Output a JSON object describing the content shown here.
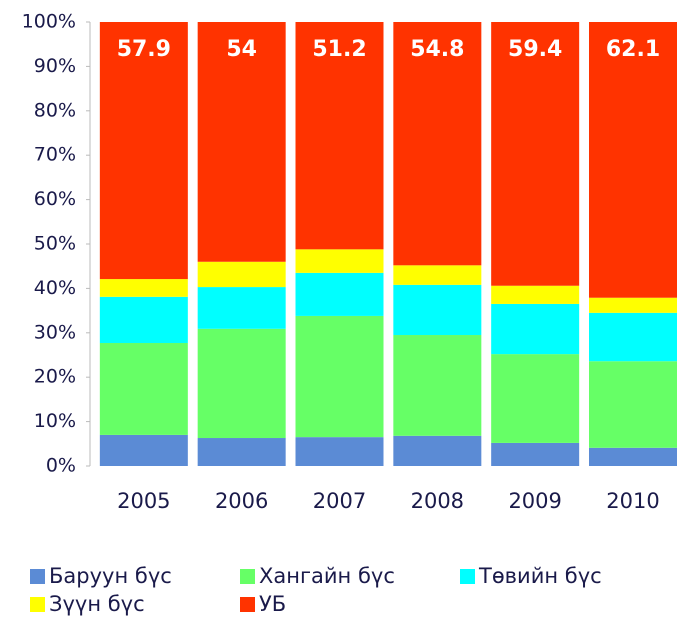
{
  "chart_data": {
    "type": "stacked_bar_100",
    "categories": [
      "2005",
      "2006",
      "2007",
      "2008",
      "2009",
      "2010"
    ],
    "series": [
      {
        "name": "Баруун бүс",
        "color": "#5b8bd5",
        "values": [
          7.0,
          6.3,
          6.5,
          6.8,
          5.2,
          4.1
        ]
      },
      {
        "name": "Хангайн бүс",
        "color": "#66ff66",
        "values": [
          20.7,
          24.6,
          27.3,
          22.7,
          20.0,
          19.5
        ]
      },
      {
        "name": "Төвийн бүс",
        "color": "#00ffff",
        "values": [
          10.4,
          9.4,
          9.7,
          11.3,
          11.3,
          10.9
        ]
      },
      {
        "name": "Зүүн бүс",
        "color": "#ffff00",
        "values": [
          4.0,
          5.7,
          5.3,
          4.4,
          4.1,
          3.4
        ]
      },
      {
        "name": "УБ",
        "color": "#ff3300",
        "values": [
          57.9,
          54.0,
          51.2,
          54.8,
          59.4,
          62.1
        ],
        "data_labels": true
      }
    ],
    "ylim": [
      0,
      100
    ],
    "yticks": [
      {
        "value": 0,
        "label": "0%"
      },
      {
        "value": 10,
        "label": "10%"
      },
      {
        "value": 20,
        "label": "20%"
      },
      {
        "value": 30,
        "label": "30%"
      },
      {
        "value": 40,
        "label": "40%"
      },
      {
        "value": 50,
        "label": "50%"
      },
      {
        "value": 60,
        "label": "60%"
      },
      {
        "value": 70,
        "label": "70%"
      },
      {
        "value": 80,
        "label": "80%"
      },
      {
        "value": 90,
        "label": "90%"
      },
      {
        "value": 100,
        "label": "100%"
      }
    ],
    "legend": "bottom"
  }
}
